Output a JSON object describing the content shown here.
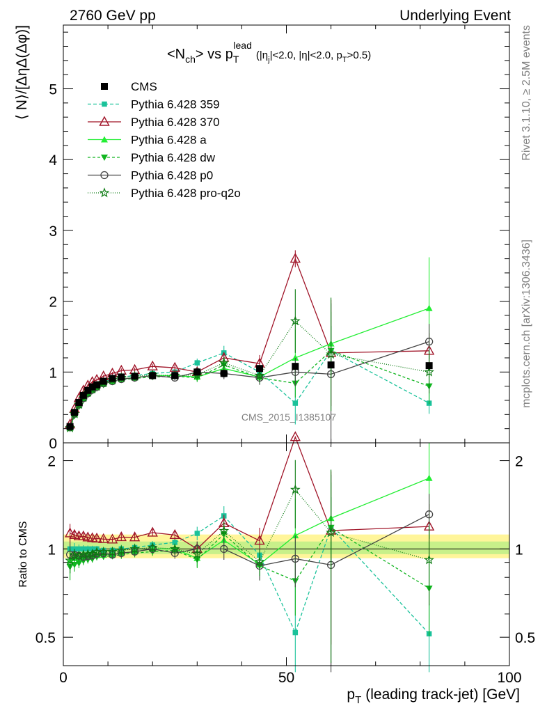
{
  "header": {
    "left": "2760 GeV pp",
    "right": "Underlying Event"
  },
  "side": {
    "top": "Rivet 3.1.10, ≥ 2.5M events",
    "bottom": "mcplots.cern.ch [arXiv:1306.3436]"
  },
  "watermark": "CMS_2015_I1385107",
  "chart_data": {
    "type": "line",
    "title": "<N_ch> vs p_T^lead (|η_j|<2.0, |η|<2.0, p_T>0.5)",
    "title_main": "<N",
    "title_sub": "ch",
    "title_vs": "> vs p",
    "title_T": "T",
    "title_lead": "lead",
    "title_cuts": "(|η",
    "title_cuts_j": "j",
    "title_cuts2": "|<2.0, |η|<2.0, p",
    "title_cuts_T": "T",
    "title_cuts3": ">0.5)",
    "ylabel": "⟨ N⟩/[ΔηΔ(Δφ)]",
    "ratio_ylabel": "Ratio to CMS",
    "xlabel_p": "p",
    "xlabel_T": "T",
    "xlabel_rest": "(leading track-jet) [GeV]",
    "xlim": [
      0,
      100
    ],
    "ylim": [
      0,
      5.9
    ],
    "ratio_ylim": [
      0.4,
      2.3
    ],
    "x_ticks": [
      "0",
      "50",
      "100"
    ],
    "y_ticks": [
      "0",
      "1",
      "2",
      "3",
      "4",
      "5"
    ],
    "ratio_y_ticks": [
      "0.5",
      "1",
      "2"
    ],
    "x": [
      1.5,
      2.5,
      3.5,
      4.5,
      5.5,
      6.5,
      7.5,
      9,
      11,
      13,
      16,
      20,
      25,
      30,
      36,
      44,
      52,
      60,
      82
    ],
    "cms": [
      0.23,
      0.43,
      0.57,
      0.67,
      0.74,
      0.79,
      0.82,
      0.87,
      0.91,
      0.93,
      0.94,
      0.95,
      0.95,
      1.0,
      0.98,
      1.05,
      1.08,
      1.1,
      1.09
    ],
    "series": [
      {
        "name": "Pythia 6.428 359",
        "color": "#1ac29a",
        "marker": "square",
        "dash": "5,3",
        "values": [
          0.23,
          0.43,
          0.57,
          0.67,
          0.74,
          0.79,
          0.82,
          0.86,
          0.9,
          0.93,
          0.95,
          0.98,
          1.0,
          1.13,
          1.27,
          1.0,
          0.56,
          1.3,
          0.56
        ],
        "errors": [
          0.02,
          0.02,
          0.02,
          0.02,
          0.02,
          0.02,
          0.02,
          0.02,
          0.02,
          0.03,
          0.03,
          0.03,
          0.04,
          0.06,
          0.1,
          0.15,
          0.3,
          0.35,
          0.15
        ]
      },
      {
        "name": "Pythia 6.428 370",
        "color": "#a01428",
        "marker": "triangle-open",
        "dash": "",
        "values": [
          0.26,
          0.48,
          0.63,
          0.74,
          0.81,
          0.86,
          0.89,
          0.94,
          0.98,
          1.02,
          1.03,
          1.08,
          1.06,
          1.0,
          1.2,
          1.12,
          2.6,
          1.27,
          1.3
        ],
        "errors": [
          0.02,
          0.02,
          0.02,
          0.02,
          0.02,
          0.02,
          0.02,
          0.02,
          0.02,
          0.03,
          0.03,
          0.03,
          0.04,
          0.06,
          0.08,
          0.12,
          0.12,
          0.75,
          0.25
        ]
      },
      {
        "name": "Pythia 6.428 a",
        "color": "#22ee33",
        "marker": "triangle",
        "dash": "",
        "values": [
          0.21,
          0.4,
          0.53,
          0.63,
          0.7,
          0.75,
          0.78,
          0.83,
          0.87,
          0.9,
          0.92,
          0.95,
          0.95,
          0.93,
          1.05,
          0.93,
          1.2,
          1.4,
          1.9
        ],
        "errors": [
          0.02,
          0.02,
          0.02,
          0.02,
          0.02,
          0.02,
          0.02,
          0.02,
          0.02,
          0.03,
          0.03,
          0.03,
          0.04,
          0.06,
          0.08,
          0.1,
          0.4,
          0.45,
          0.72
        ]
      },
      {
        "name": "Pythia 6.428 dw",
        "color": "#11b520",
        "marker": "triangle-down",
        "dash": "4,3",
        "values": [
          0.2,
          0.38,
          0.51,
          0.61,
          0.68,
          0.73,
          0.77,
          0.82,
          0.86,
          0.89,
          0.91,
          0.93,
          0.94,
          0.92,
          1.1,
          0.92,
          0.84,
          1.3,
          0.8
        ],
        "errors": [
          0.02,
          0.02,
          0.02,
          0.02,
          0.02,
          0.02,
          0.02,
          0.02,
          0.02,
          0.03,
          0.03,
          0.03,
          0.04,
          0.06,
          0.08,
          0.1,
          0.2,
          0.35,
          0.25
        ]
      },
      {
        "name": "Pythia 6.428 p0",
        "color": "#444444",
        "marker": "circle-open",
        "dash": "",
        "values": [
          0.22,
          0.41,
          0.54,
          0.63,
          0.7,
          0.75,
          0.79,
          0.84,
          0.87,
          0.9,
          0.92,
          0.95,
          0.92,
          1.0,
          0.98,
          0.92,
          1.0,
          0.97,
          1.43
        ],
        "errors": [
          0.02,
          0.02,
          0.02,
          0.02,
          0.02,
          0.02,
          0.02,
          0.02,
          0.02,
          0.03,
          0.03,
          0.03,
          0.04,
          0.06,
          0.08,
          0.1,
          0.2,
          1.0,
          0.25
        ]
      },
      {
        "name": "Pythia 6.428 pro-q2o",
        "color": "#0a7a10",
        "marker": "star",
        "dash": "1,2",
        "values": [
          0.21,
          0.41,
          0.54,
          0.64,
          0.71,
          0.76,
          0.8,
          0.85,
          0.89,
          0.92,
          0.94,
          0.96,
          0.95,
          0.96,
          1.13,
          0.95,
          1.72,
          1.25,
          1.0
        ],
        "errors": [
          0.02,
          0.02,
          0.02,
          0.02,
          0.02,
          0.02,
          0.02,
          0.02,
          0.02,
          0.03,
          0.03,
          0.03,
          0.04,
          0.06,
          0.08,
          0.1,
          0.45,
          0.8,
          0.3
        ]
      }
    ],
    "legend": [
      "CMS",
      "Pythia 6.428 359",
      "Pythia 6.428 370",
      "Pythia 6.428 a",
      "Pythia 6.428 dw",
      "Pythia 6.428 p0",
      "Pythia 6.428 pro-q2o"
    ],
    "legend_placement": "top-left"
  }
}
